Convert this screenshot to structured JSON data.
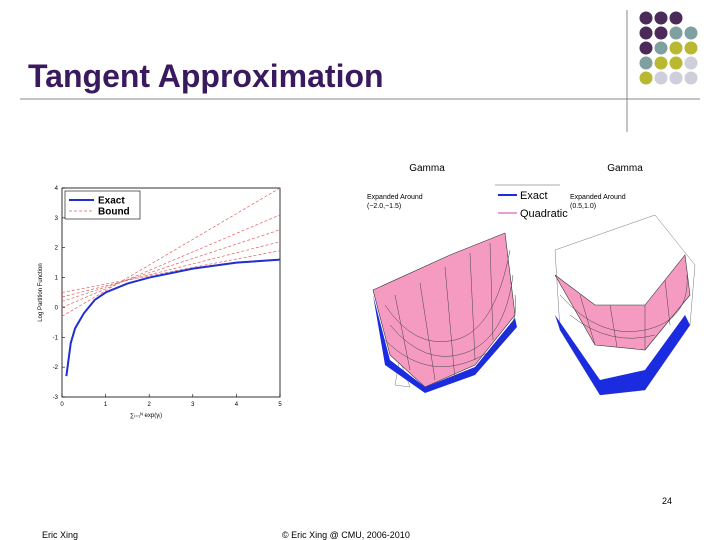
{
  "header": {
    "title": "Tangent Approximation"
  },
  "figure": {
    "chart_data": {
      "type": "line",
      "xlabel": "∑ᵢ₌₁ᴺ exp(γᵢ)",
      "ylabel": "Log Partition Function",
      "xlim": [
        0,
        5
      ],
      "ylim": [
        -3,
        4
      ],
      "xticks": [
        0,
        1,
        2,
        3,
        4,
        5
      ],
      "yticks": [
        -3,
        -2,
        -1,
        0,
        1,
        2,
        3,
        4
      ],
      "legend": "upper left",
      "series": [
        {
          "name": "Exact",
          "color": "#1f2fd0",
          "x": [
            0.1,
            0.2,
            0.3,
            0.5,
            0.75,
            1,
            1.5,
            2,
            2.5,
            3,
            3.5,
            4,
            4.5,
            5
          ],
          "values": [
            -2.3,
            -1.2,
            -0.7,
            -0.2,
            0.25,
            0.5,
            0.8,
            1.0,
            1.15,
            1.3,
            1.4,
            1.5,
            1.55,
            1.6
          ]
        },
        {
          "name": "Bound",
          "color": "#e06060",
          "x": [
            0,
            5
          ],
          "values": [
            [
              -0.3,
              4.0
            ],
            [
              0.0,
              3.1
            ],
            [
              0.2,
              2.6
            ],
            [
              0.35,
              2.2
            ],
            [
              0.5,
              1.9
            ]
          ]
        }
      ]
    },
    "surfaces": {
      "titles": [
        "Gamma",
        "Gamma"
      ],
      "legend": [
        "Exact",
        "Quadratic"
      ],
      "annotations": [
        "Expanded Around (−2.0,−1.5)",
        "Expanded Around (0.5,1.0)"
      ]
    }
  },
  "footer": {
    "page_number": "24",
    "author": "Eric Xing",
    "copyright": "© Eric Xing @ CMU, 2006-2010"
  }
}
